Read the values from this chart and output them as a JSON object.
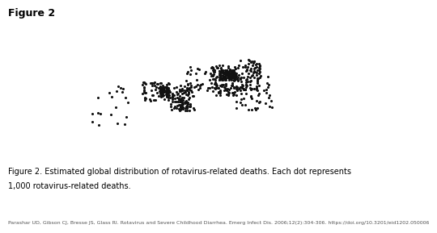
{
  "title": "Figure 2",
  "caption_line1": "Figure 2. Estimated global distribution of rotavirus-related deaths. Each dot represents",
  "caption_line2": "1,000 rotavirus-related deaths.",
  "citation": "Parashar UD, Gibson CJ, Bresse JS, Glass RI. Rotavirus and Severe Childhood Diarrhea. Emerg Infect Dis. 2006;12(2):304-306. https://doi.org/10.3201/eid1202.050006",
  "bg_color": "#ffffff",
  "map_bg": "#e8e8e8",
  "land_color": "#f0f0f0",
  "border_color": "#555555",
  "dot_color": "#111111",
  "dot_size": 1.5,
  "title_fontsize": 9,
  "caption_fontsize": 7,
  "citation_fontsize": 4.5,
  "dot_regions": {
    "south_asia": {
      "lon_min": 65,
      "lon_max": 100,
      "lat_min": 5,
      "lat_max": 35,
      "density": 120
    },
    "east_asia": {
      "lon_min": 100,
      "lon_max": 125,
      "lat_min": 10,
      "lat_max": 40,
      "density": 80
    },
    "west_africa": {
      "lon_min": -18,
      "lon_max": 15,
      "lat_min": 0,
      "lat_max": 18,
      "density": 60
    },
    "central_africa": {
      "lon_min": 15,
      "lon_max": 40,
      "lat_min": -10,
      "lat_max": 15,
      "density": 70
    },
    "east_africa": {
      "lon_min": 25,
      "lon_max": 45,
      "lat_min": -10,
      "lat_max": 15,
      "density": 40
    },
    "nigeria": {
      "lon_min": 2,
      "lon_max": 15,
      "lat_min": 4,
      "lat_max": 14,
      "density": 50
    },
    "middle_east": {
      "lon_min": 35,
      "lon_max": 65,
      "lat_min": 10,
      "lat_max": 35,
      "density": 30
    },
    "southeast_asia": {
      "lon_min": 95,
      "lon_max": 140,
      "lat_min": -10,
      "lat_max": 25,
      "density": 50
    },
    "latin_america": {
      "lon_min": -80,
      "lon_max": -35,
      "lat_min": -25,
      "lat_max": 15,
      "density": 20
    },
    "china_india_border": {
      "lon_min": 75,
      "lon_max": 95,
      "lat_min": 20,
      "lat_max": 30,
      "density": 100
    }
  }
}
